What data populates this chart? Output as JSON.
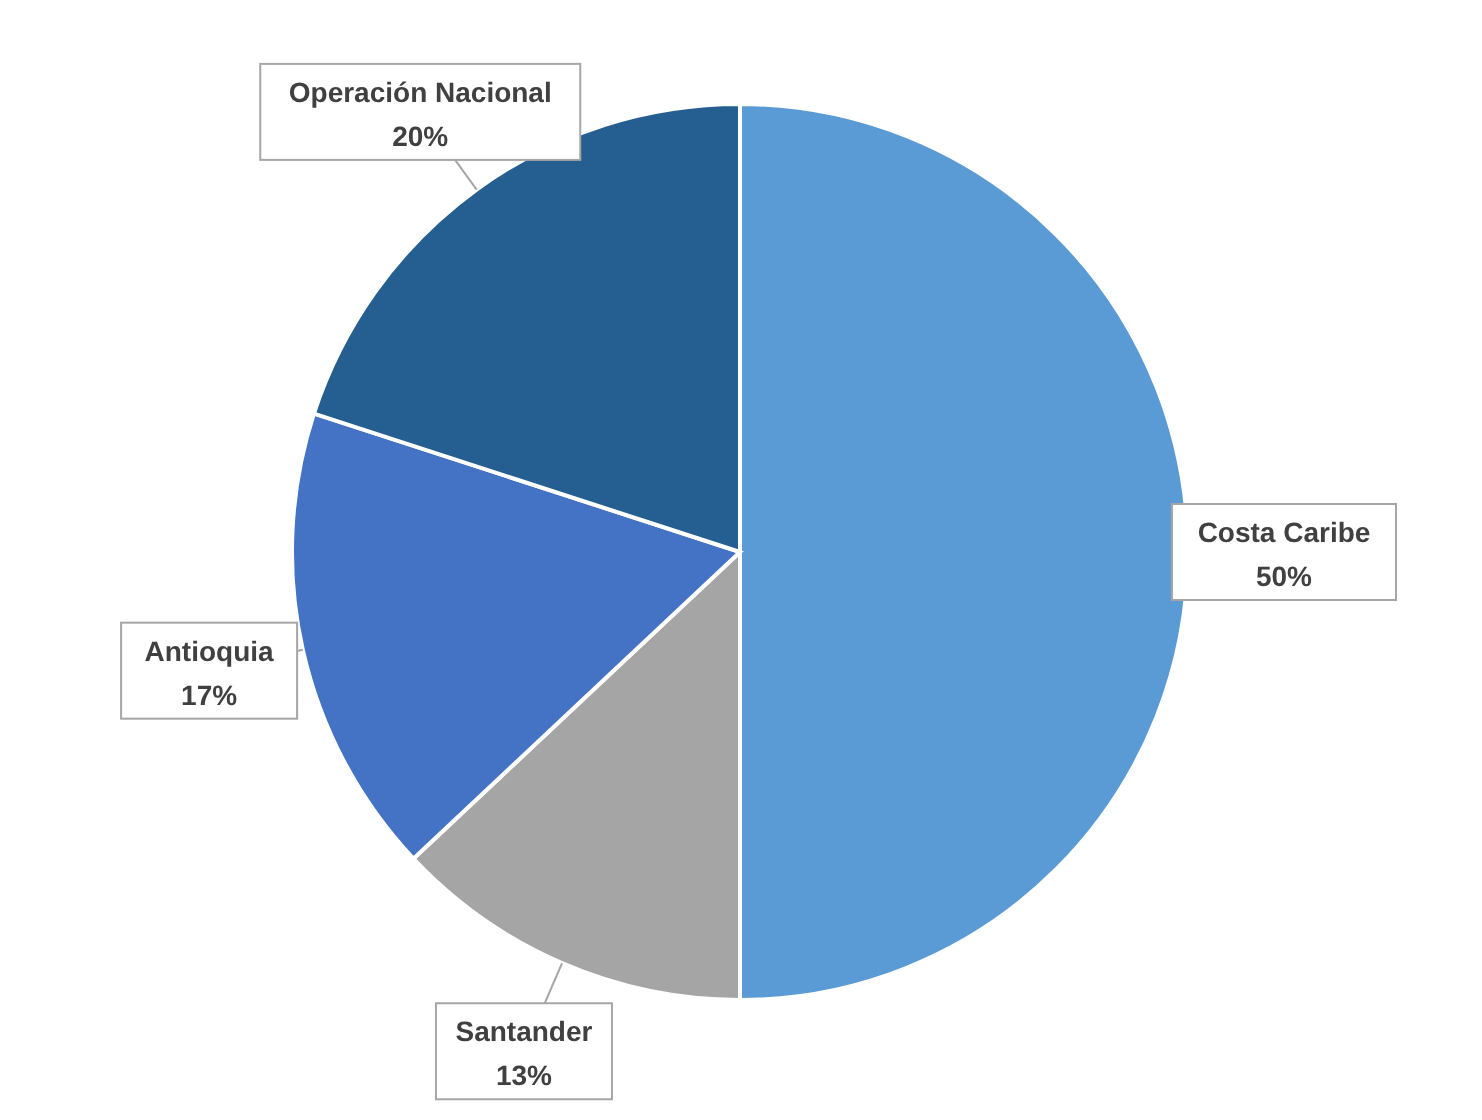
{
  "chart_data": {
    "type": "pie",
    "categories": [
      "Costa Caribe",
      "Santander",
      "Antioquia",
      "Operación Nacional"
    ],
    "values": [
      50,
      13,
      17,
      20
    ],
    "colors": [
      "#5b9bd5",
      "#a5a5a5",
      "#4472c4",
      "#255e91"
    ],
    "value_labels": [
      "50%",
      "13%",
      "17%",
      "20%"
    ]
  }
}
